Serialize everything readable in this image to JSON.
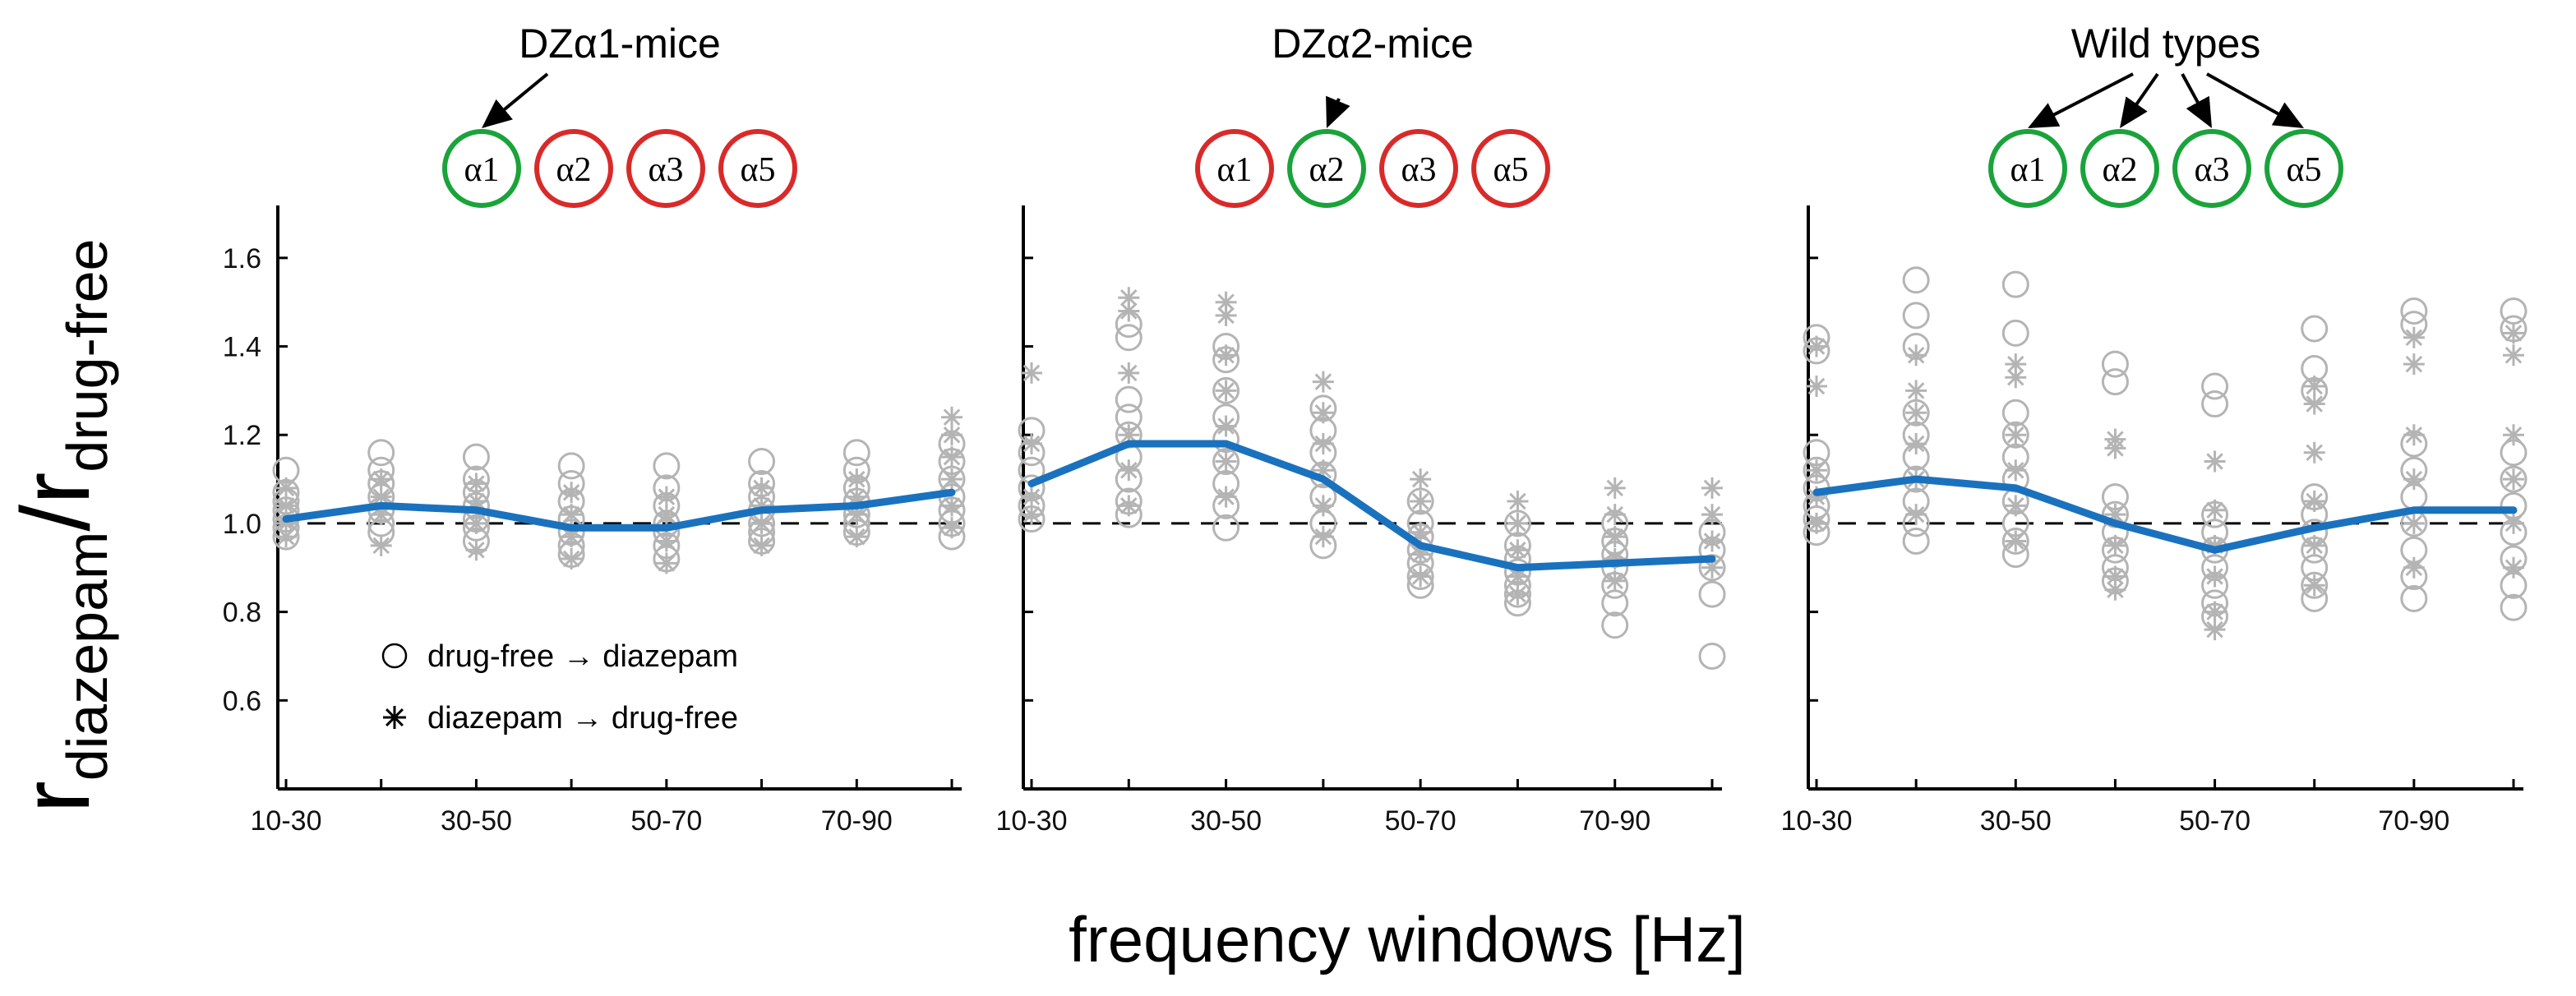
{
  "chart_data": [
    {
      "type": "line",
      "title": "DZα1-mice",
      "receptor_subunits": [
        {
          "label": "α1",
          "status": "sensitive",
          "color": "#1aa33a"
        },
        {
          "label": "α2",
          "status": "insensitive",
          "color": "#d92a2a"
        },
        {
          "label": "α3",
          "status": "insensitive",
          "color": "#d92a2a"
        },
        {
          "label": "α5",
          "status": "insensitive",
          "color": "#d92a2a"
        }
      ],
      "arrows_to": [
        "α1"
      ],
      "x_positions": [
        0,
        1,
        2,
        3,
        4,
        5,
        6,
        7
      ],
      "tick_labels": [
        "10-30",
        "30-50",
        "50-70",
        "70-90"
      ],
      "tick_positions": [
        0,
        2,
        4,
        6
      ],
      "mean_series": {
        "name": "mean",
        "values": [
          1.01,
          1.04,
          1.03,
          0.99,
          0.99,
          1.03,
          1.04,
          1.07
        ]
      },
      "scatter_circles": [
        [
          1.12,
          1.07,
          1.05,
          1.03,
          1.01,
          0.99,
          0.97
        ],
        [
          1.16,
          1.12,
          1.09,
          1.06,
          1.03,
          1.0,
          0.98
        ],
        [
          1.15,
          1.1,
          1.07,
          1.04,
          1.01,
          0.99,
          0.96
        ],
        [
          1.13,
          1.09,
          1.05,
          1.01,
          0.98,
          0.95,
          0.93
        ],
        [
          1.13,
          1.08,
          1.04,
          1.0,
          0.98,
          0.95,
          0.92
        ],
        [
          1.14,
          1.09,
          1.06,
          1.03,
          1.0,
          0.98,
          0.96
        ],
        [
          1.16,
          1.12,
          1.08,
          1.05,
          1.02,
          1.0,
          0.98
        ],
        [
          1.18,
          1.14,
          1.1,
          1.06,
          1.03,
          1.0,
          0.97
        ]
      ],
      "scatter_stars": [
        [
          1.08,
          1.04,
          1.0,
          0.97
        ],
        [
          1.1,
          1.06,
          1.02,
          0.95
        ],
        [
          1.09,
          1.05,
          1.0,
          0.94
        ],
        [
          1.07,
          1.02,
          0.97,
          0.92
        ],
        [
          1.06,
          1.02,
          0.96,
          0.91
        ],
        [
          1.08,
          1.04,
          1.0,
          0.95
        ],
        [
          1.1,
          1.06,
          1.02,
          0.97
        ],
        [
          1.24,
          1.2,
          1.15,
          1.1,
          1.04,
          0.99
        ]
      ],
      "ylim": [
        0.4,
        1.7
      ],
      "yticks": [
        0.6,
        0.8,
        1.0,
        1.2,
        1.4,
        1.6
      ],
      "reference_line": 1.0
    },
    {
      "type": "line",
      "title": "DZα2-mice",
      "receptor_subunits": [
        {
          "label": "α1",
          "status": "insensitive",
          "color": "#d92a2a"
        },
        {
          "label": "α2",
          "status": "sensitive",
          "color": "#1aa33a"
        },
        {
          "label": "α3",
          "status": "insensitive",
          "color": "#d92a2a"
        },
        {
          "label": "α5",
          "status": "insensitive",
          "color": "#d92a2a"
        }
      ],
      "arrows_to": [
        "α2"
      ],
      "x_positions": [
        0,
        1,
        2,
        3,
        4,
        5,
        6,
        7
      ],
      "tick_labels": [
        "10-30",
        "30-50",
        "50-70",
        "70-90"
      ],
      "tick_positions": [
        0,
        2,
        4,
        6
      ],
      "mean_series": {
        "name": "mean",
        "values": [
          1.09,
          1.18,
          1.18,
          1.1,
          0.95,
          0.9,
          0.91,
          0.92
        ]
      },
      "scatter_circles": [
        [
          1.21,
          1.16,
          1.12,
          1.08,
          1.04,
          1.01
        ],
        [
          1.45,
          1.42,
          1.28,
          1.24,
          1.2,
          1.15,
          1.1,
          1.05,
          1.02
        ],
        [
          1.4,
          1.37,
          1.3,
          1.24,
          1.19,
          1.14,
          1.09,
          1.04,
          0.99
        ],
        [
          1.26,
          1.21,
          1.16,
          1.11,
          1.06,
          1.0,
          0.95
        ],
        [
          1.05,
          1.0,
          0.97,
          0.94,
          0.91,
          0.88,
          0.86
        ],
        [
          1.0,
          0.95,
          0.92,
          0.89,
          0.86,
          0.84,
          0.82
        ],
        [
          1.0,
          0.96,
          0.93,
          0.9,
          0.86,
          0.82,
          0.77
        ],
        [
          0.98,
          0.94,
          0.9,
          0.84,
          0.7
        ]
      ],
      "scatter_stars": [
        [
          1.34,
          1.18,
          1.06,
          1.02
        ],
        [
          1.51,
          1.48,
          1.34,
          1.2,
          1.12,
          1.04
        ],
        [
          1.5,
          1.47,
          1.38,
          1.3,
          1.22,
          1.14,
          1.06
        ],
        [
          1.32,
          1.25,
          1.18,
          1.12,
          1.04,
          0.97
        ],
        [
          1.1,
          1.05,
          0.98,
          0.93,
          0.88
        ],
        [
          1.05,
          1.0,
          0.94,
          0.88,
          0.84
        ],
        [
          1.08,
          1.02,
          0.97,
          0.92,
          0.87
        ],
        [
          1.08,
          1.02,
          0.96,
          0.9
        ]
      ],
      "ylim": [
        0.4,
        1.7
      ],
      "yticks": [
        0.6,
        0.8,
        1.0,
        1.2,
        1.4,
        1.6
      ],
      "reference_line": 1.0
    },
    {
      "type": "line",
      "title": "Wild types",
      "receptor_subunits": [
        {
          "label": "α1",
          "status": "sensitive",
          "color": "#1aa33a"
        },
        {
          "label": "α2",
          "status": "sensitive",
          "color": "#1aa33a"
        },
        {
          "label": "α3",
          "status": "sensitive",
          "color": "#1aa33a"
        },
        {
          "label": "α5",
          "status": "sensitive",
          "color": "#1aa33a"
        }
      ],
      "arrows_to": [
        "α1",
        "α2",
        "α3",
        "α5"
      ],
      "x_positions": [
        0,
        1,
        2,
        3,
        4,
        5,
        6,
        7
      ],
      "tick_labels": [
        "10-30",
        "30-50",
        "50-70",
        "70-90"
      ],
      "tick_positions": [
        0,
        2,
        4,
        6
      ],
      "mean_series": {
        "name": "mean",
        "values": [
          1.07,
          1.1,
          1.08,
          1.0,
          0.94,
          0.99,
          1.03,
          1.03
        ]
      },
      "scatter_circles": [
        [
          1.42,
          1.39,
          1.16,
          1.12,
          1.08,
          1.04,
          1.01,
          0.98
        ],
        [
          1.55,
          1.47,
          1.4,
          1.25,
          1.2,
          1.15,
          1.1,
          1.05,
          1.0,
          0.96
        ],
        [
          1.54,
          1.43,
          1.25,
          1.2,
          1.15,
          1.1,
          1.05,
          1.0,
          0.96,
          0.93
        ],
        [
          1.36,
          1.32,
          1.06,
          1.02,
          0.98,
          0.94,
          0.9,
          0.87
        ],
        [
          1.31,
          1.27,
          1.02,
          0.98,
          0.94,
          0.9,
          0.86,
          0.82,
          0.79
        ],
        [
          1.44,
          1.35,
          1.3,
          1.06,
          1.02,
          0.98,
          0.94,
          0.9,
          0.86,
          0.83
        ],
        [
          1.48,
          1.45,
          1.18,
          1.12,
          1.06,
          1.0,
          0.94,
          0.88,
          0.83
        ],
        [
          1.48,
          1.44,
          1.16,
          1.1,
          1.04,
          0.98,
          0.92,
          0.86,
          0.81
        ]
      ],
      "scatter_stars": [
        [
          1.4,
          1.31,
          1.12,
          1.06,
          1.0
        ],
        [
          1.38,
          1.3,
          1.25,
          1.18,
          1.1,
          1.02
        ],
        [
          1.36,
          1.33,
          1.2,
          1.12,
          1.04,
          0.96
        ],
        [
          1.19,
          1.17,
          1.02,
          0.95,
          0.88,
          0.85
        ],
        [
          1.14,
          1.03,
          0.95,
          0.88,
          0.8,
          0.76
        ],
        [
          1.31,
          1.27,
          1.16,
          1.05,
          0.95,
          0.86
        ],
        [
          1.42,
          1.36,
          1.2,
          1.1,
          1.0,
          0.9
        ],
        [
          1.43,
          1.38,
          1.2,
          1.1,
          1.0,
          0.9
        ]
      ],
      "ylim": [
        0.4,
        1.7
      ],
      "yticks": [
        0.6,
        0.8,
        1.0,
        1.2,
        1.4,
        1.6
      ],
      "reference_line": 1.0
    }
  ],
  "labels": {
    "xlabel": "frequency windows [Hz]",
    "ylabel_main": "r",
    "ylabel_sub1": "diazepam",
    "ylabel_slash": "/",
    "ylabel_main2": "r",
    "ylabel_sub2": "drug-free"
  },
  "legend": {
    "items": [
      {
        "marker": "circle",
        "label": "drug-free → diazepam"
      },
      {
        "marker": "star",
        "label": "diazepam → drug-free"
      }
    ]
  },
  "colors": {
    "mean_line": "#1a72be",
    "scatter": "#b4b4b4",
    "reference_line": "#000000",
    "sensitive": "#1aa33a",
    "insensitive": "#d92a2a"
  }
}
